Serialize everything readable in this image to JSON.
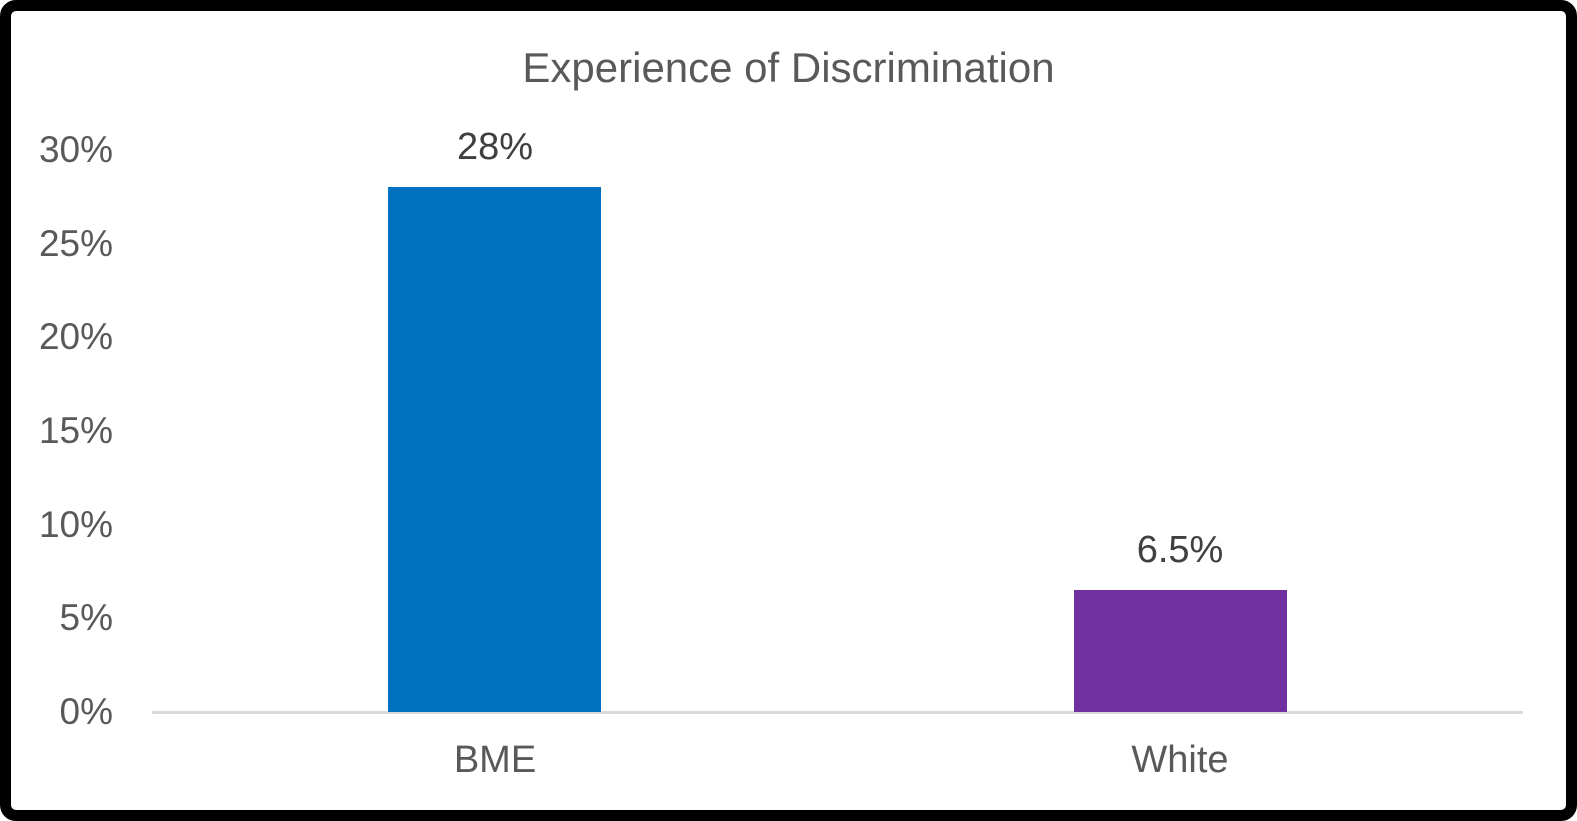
{
  "chart_data": {
    "type": "bar",
    "title": "Experience of Discrimination",
    "categories": [
      "BME",
      "White"
    ],
    "values": [
      28,
      6.5
    ],
    "data_labels": [
      "28%",
      "6.5%"
    ],
    "series": [
      {
        "name": "BME",
        "values": [
          28
        ]
      },
      {
        "name": "White",
        "values": [
          6.5
        ]
      }
    ],
    "bar_colors": [
      "#0070C0",
      "#7030A0"
    ],
    "y_ticks": [
      "30%",
      "25%",
      "20%",
      "15%",
      "10%",
      "5%",
      "0%"
    ],
    "ylim": [
      0,
      30
    ],
    "xlabel": "",
    "ylabel": "",
    "grid": false,
    "legend": "none",
    "colors": {
      "title_text": "#595959",
      "axis_text": "#595959",
      "data_label_text": "#404040",
      "axis_line": "#d9d9d9",
      "frame_border": "#000000",
      "background": "#ffffff"
    }
  }
}
